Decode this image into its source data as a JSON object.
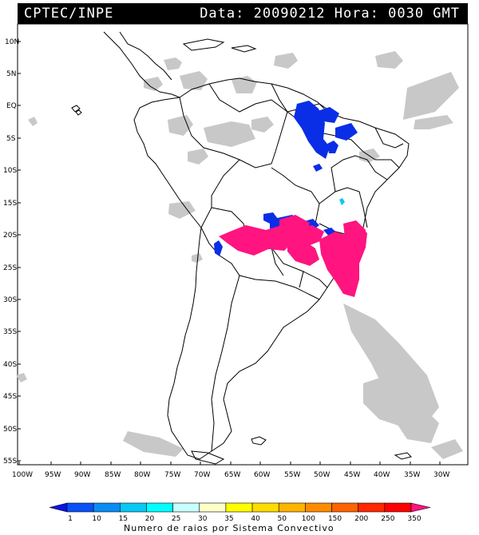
{
  "header": {
    "source": "CPTEC/INPE",
    "datetime": "Data: 20090212 Hora: 0030 GMT"
  },
  "latitude_labels": [
    "10N",
    "5N",
    "EQ",
    "5S",
    "10S",
    "15S",
    "20S",
    "25S",
    "30S",
    "35S",
    "40S",
    "45S",
    "50S",
    "55S"
  ],
  "longitude_labels": [
    "100W",
    "95W",
    "90W",
    "85W",
    "80W",
    "75W",
    "70W",
    "65W",
    "60W",
    "55W",
    "50W",
    "45W",
    "40W",
    "35W",
    "30W"
  ],
  "colorbar": {
    "values": [
      "1",
      "10",
      "15",
      "20",
      "25",
      "30",
      "35",
      "40",
      "50",
      "100",
      "150",
      "200",
      "250",
      "350"
    ],
    "colors": [
      "#0a14e6",
      "#0a50f5",
      "#0a8cf5",
      "#0ac8f5",
      "#00ffff",
      "#c8ffff",
      "#ffffc8",
      "#ffff00",
      "#ffdc00",
      "#ffb400",
      "#ff8c00",
      "#ff6400",
      "#ff2800",
      "#ff0000",
      "#ff1480"
    ],
    "label": "Numero de raios por Sistema Convectivo"
  },
  "legend_colors": {
    "cloud": "#c8c8c8",
    "land_border": "#000000"
  }
}
